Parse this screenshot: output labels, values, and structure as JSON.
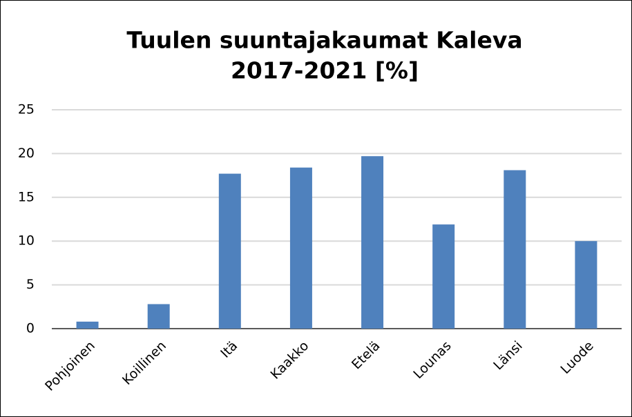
{
  "chart_data": {
    "type": "bar",
    "title": [
      "Tuulen suuntajakaumat Kaleva",
      "2017-2021 [%]"
    ],
    "categories": [
      "Pohjoinen",
      "Koillinen",
      "Itä",
      "Kaakko",
      "Etelä",
      "Lounas",
      "Länsi",
      "Luode"
    ],
    "values": [
      0.8,
      2.8,
      17.7,
      18.4,
      19.7,
      11.9,
      18.1,
      10.0
    ],
    "color": "#4f81bd",
    "ylim": [
      0,
      25
    ],
    "yticks": [
      0,
      5,
      10,
      15,
      20,
      25
    ],
    "grid": true
  }
}
